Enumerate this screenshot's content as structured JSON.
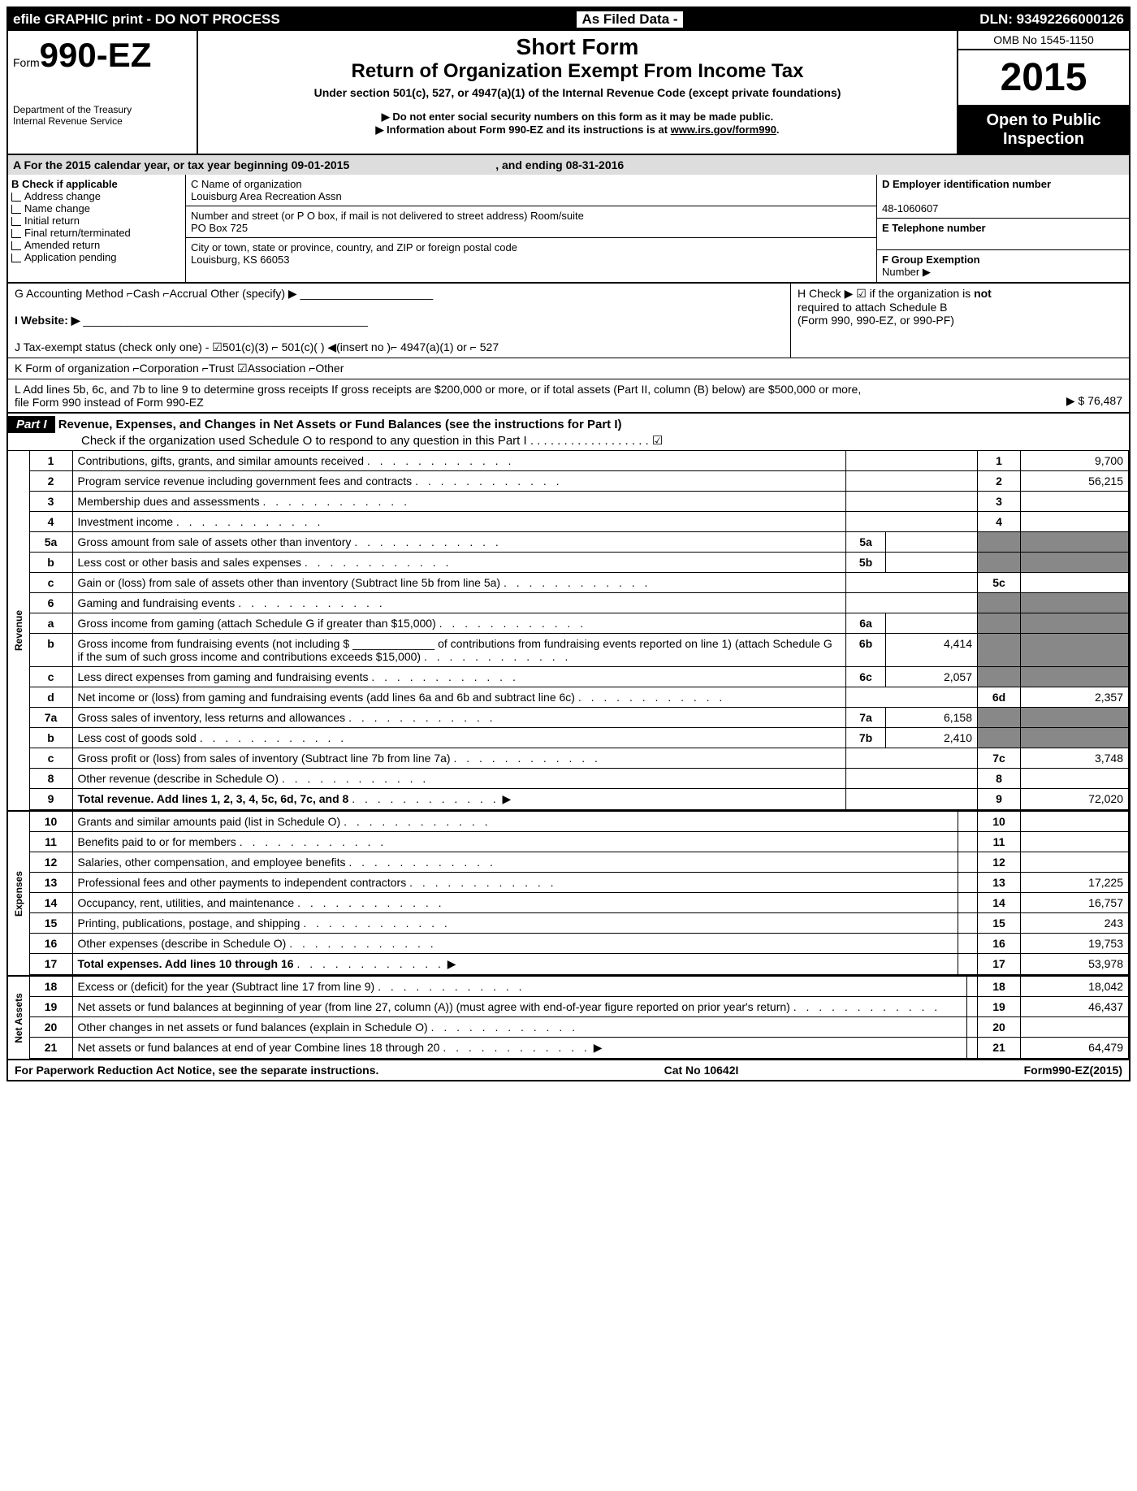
{
  "top": {
    "left": "efile GRAPHIC print - DO NOT PROCESS",
    "mid": "As Filed Data -",
    "right": "DLN: 93492266000126"
  },
  "hdr": {
    "form": "Form",
    "num": "990-EZ",
    "dept1": "Department of the Treasury",
    "dept2": "Internal Revenue Service",
    "shortform": "Short Form",
    "title": "Return of Organization Exempt From Income Tax",
    "sub": "Under section 501(c), 527, or 4947(a)(1) of the Internal Revenue Code (except private foundations)",
    "l1": "▶ Do not enter social security numbers on this form as it may be made public.",
    "l2": "▶ Information about Form 990-EZ and its instructions is at ",
    "l2link": "www.irs.gov/form990",
    "omb": "OMB No 1545-1150",
    "year": "2015",
    "open1": "Open to Public",
    "open2": "Inspection"
  },
  "A": {
    "text": "A  For the 2015 calendar year, or tax year beginning 09-01-2015",
    "end": ", and ending 08-31-2016"
  },
  "B": {
    "hdr": "B  Check if applicable",
    "i": [
      "Address change",
      "Name change",
      "Initial return",
      "Final return/terminated",
      "Amended return",
      "Application pending"
    ]
  },
  "C": {
    "lbl": "C Name of organization",
    "name": "Louisburg Area Recreation Assn",
    "addr_lbl": "Number and street (or P  O  box, if mail is not delivered to street address) Room/suite",
    "addr": "PO Box 725",
    "city_lbl": "City or town, state or province, country, and ZIP or foreign postal code",
    "city": "Louisburg, KS  66053"
  },
  "D": {
    "lbl": "D Employer identification number",
    "val": "48-1060607"
  },
  "E": {
    "lbl": "E Telephone number"
  },
  "F": {
    "lbl": "F Group Exemption",
    "lbl2": "Number    ▶"
  },
  "G": "G Accounting Method   ⌐Cash  ⌐Accrual   Other (specify) ▶",
  "H": {
    "l1": "H   Check ▶ ☑ if the organization is ",
    "bold": "not",
    "l2": "required to attach Schedule B",
    "l3": "(Form 990, 990-EZ, or 990-PF)"
  },
  "I": "I Website: ▶",
  "J": "J Tax-exempt status (check only one) - ☑501(c)(3) ⌐ 501(c)(  ) ◀(insert no )⌐ 4947(a)(1) or ⌐ 527",
  "K": "K Form of organization   ⌐Corporation  ⌐Trust  ☑Association  ⌐Other",
  "L": {
    "txt": "L Add lines 5b, 6c, and 7b to line 9 to determine gross receipts  If gross receipts are $200,000 or more, or if total assets (Part II, column (B) below) are $500,000 or more, file Form 990 instead of Form 990-EZ",
    "amt": "▶ $ 76,487"
  },
  "part1": {
    "lbl": "Part I",
    "title": "Revenue, Expenses, and Changes in Net Assets or Fund Balances (see the instructions for Part I)",
    "chk": "Check if the organization used Schedule O to respond to any question in this Part I  . . . . . . . . . . . . . . . . . . ☑"
  },
  "rev": [
    {
      "n": "1",
      "d": "Contributions, gifts, grants, and similar amounts received",
      "rn": "1",
      "rv": "9,700"
    },
    {
      "n": "2",
      "d": "Program service revenue including government fees and contracts",
      "rn": "2",
      "rv": "56,215"
    },
    {
      "n": "3",
      "d": "Membership dues and assessments",
      "rn": "3",
      "rv": ""
    },
    {
      "n": "4",
      "d": "Investment income",
      "rn": "4",
      "rv": ""
    },
    {
      "n": "5a",
      "d": "Gross amount from sale of assets other than inventory",
      "mn": "5a",
      "mv": "",
      "shade": true
    },
    {
      "n": "b",
      "d": "Less  cost or other basis and sales expenses",
      "mn": "5b",
      "mv": "",
      "shade": true
    },
    {
      "n": "c",
      "d": "Gain or (loss) from sale of assets other than inventory (Subtract line 5b from line 5a)",
      "rn": "5c",
      "rv": ""
    },
    {
      "n": "6",
      "d": "Gaming and fundraising events",
      "shade": true
    },
    {
      "n": "a",
      "d": "Gross income from gaming (attach Schedule G if greater than $15,000)",
      "mn": "6a",
      "mv": "",
      "shade": true
    },
    {
      "n": "b",
      "d": "Gross income from fundraising events (not including $ _____________ of contributions from fundraising events reported on line 1) (attach Schedule G if the sum of such gross income and contributions exceeds $15,000)",
      "mn": "6b",
      "mv": "4,414",
      "shade": true
    },
    {
      "n": "c",
      "d": "Less  direct expenses from gaming and fundraising events",
      "mn": "6c",
      "mv": "2,057",
      "shade": true
    },
    {
      "n": "d",
      "d": "Net income or (loss) from gaming and fundraising events (add lines 6a and 6b and subtract line 6c)",
      "rn": "6d",
      "rv": "2,357"
    },
    {
      "n": "7a",
      "d": "Gross sales of inventory, less returns and allowances",
      "mn": "7a",
      "mv": "6,158",
      "shade": true
    },
    {
      "n": "b",
      "d": "Less  cost of goods sold",
      "mn": "7b",
      "mv": "2,410",
      "shade": true
    },
    {
      "n": "c",
      "d": "Gross profit or (loss) from sales of inventory (Subtract line 7b from line 7a)",
      "rn": "7c",
      "rv": "3,748"
    },
    {
      "n": "8",
      "d": "Other revenue (describe in Schedule O)",
      "rn": "8",
      "rv": ""
    },
    {
      "n": "9",
      "d": "Total revenue. Add lines 1, 2, 3, 4, 5c, 6d, 7c, and 8",
      "rn": "9",
      "rv": "72,020",
      "arrow": true,
      "bold": true
    }
  ],
  "exp": [
    {
      "n": "10",
      "d": "Grants and similar amounts paid (list in Schedule O)",
      "rn": "10",
      "rv": ""
    },
    {
      "n": "11",
      "d": "Benefits paid to or for members",
      "rn": "11",
      "rv": ""
    },
    {
      "n": "12",
      "d": "Salaries, other compensation, and employee benefits",
      "rn": "12",
      "rv": ""
    },
    {
      "n": "13",
      "d": "Professional fees and other payments to independent contractors",
      "rn": "13",
      "rv": "17,225"
    },
    {
      "n": "14",
      "d": "Occupancy, rent, utilities, and maintenance",
      "rn": "14",
      "rv": "16,757"
    },
    {
      "n": "15",
      "d": "Printing, publications, postage, and shipping",
      "rn": "15",
      "rv": "243"
    },
    {
      "n": "16",
      "d": "Other expenses (describe in Schedule O)",
      "rn": "16",
      "rv": "19,753"
    },
    {
      "n": "17",
      "d": "Total expenses. Add lines 10 through 16",
      "rn": "17",
      "rv": "53,978",
      "arrow": true,
      "bold": true
    }
  ],
  "net": [
    {
      "n": "18",
      "d": "Excess or (deficit) for the year (Subtract line 17 from line 9)",
      "rn": "18",
      "rv": "18,042"
    },
    {
      "n": "19",
      "d": "Net assets or fund balances at beginning of year (from line 27, column (A)) (must agree with end-of-year figure reported on prior year's return)",
      "rn": "19",
      "rv": "46,437"
    },
    {
      "n": "20",
      "d": "Other changes in net assets or fund balances (explain in Schedule O)",
      "rn": "20",
      "rv": ""
    },
    {
      "n": "21",
      "d": "Net assets or fund balances at end of year  Combine lines 18 through 20",
      "rn": "21",
      "rv": "64,479",
      "arrow": true
    }
  ],
  "ftr": {
    "l": "For Paperwork Reduction Act Notice, see the separate instructions.",
    "m": "Cat No 10642I",
    "r": "Form 990-EZ (2015)"
  }
}
